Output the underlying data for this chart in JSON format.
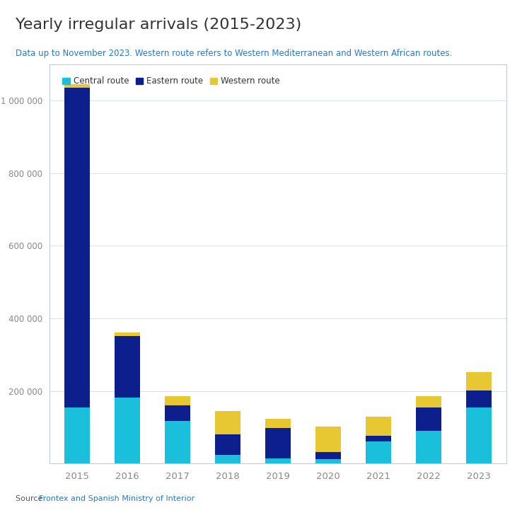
{
  "title": "Yearly irregular arrivals (2015-2023)",
  "subtitle": "Data up to November 2023. Western route refers to Western Mediterranean and Western African routes.",
  "source_prefix": "Source: ",
  "source_link_text": "Frontex and Spanish Ministry of Interior",
  "years": [
    2015,
    2016,
    2017,
    2018,
    2019,
    2020,
    2021,
    2022,
    2023
  ],
  "central_route": [
    155000,
    182000,
    118000,
    23000,
    14000,
    12000,
    60000,
    90000,
    155000
  ],
  "eastern_route": [
    880000,
    170000,
    42000,
    57000,
    83000,
    20000,
    17000,
    65000,
    47000
  ],
  "western_route": [
    10000,
    10000,
    26000,
    65000,
    27000,
    70000,
    52000,
    30000,
    50000
  ],
  "color_central": "#1ABFDB",
  "color_eastern": "#0D1F8C",
  "color_western": "#E8C832",
  "legend_labels": [
    "Central route",
    "Eastern route",
    "Western route"
  ],
  "ylim": [
    0,
    1100000
  ],
  "yticks": [
    200000,
    400000,
    600000,
    800000,
    1000000
  ],
  "ytick_labels": [
    "200 000",
    "400 000",
    "600 000",
    "800 000",
    "1 000 000"
  ],
  "background_color": "#ffffff",
  "chart_background": "#ffffff",
  "border_color": "#c0ccd8",
  "grid_color": "#d8e0e8",
  "title_color": "#333333",
  "subtitle_color": "#2878C8",
  "source_color": "#555555",
  "source_link_color": "#2878C8",
  "tick_color": "#888888"
}
